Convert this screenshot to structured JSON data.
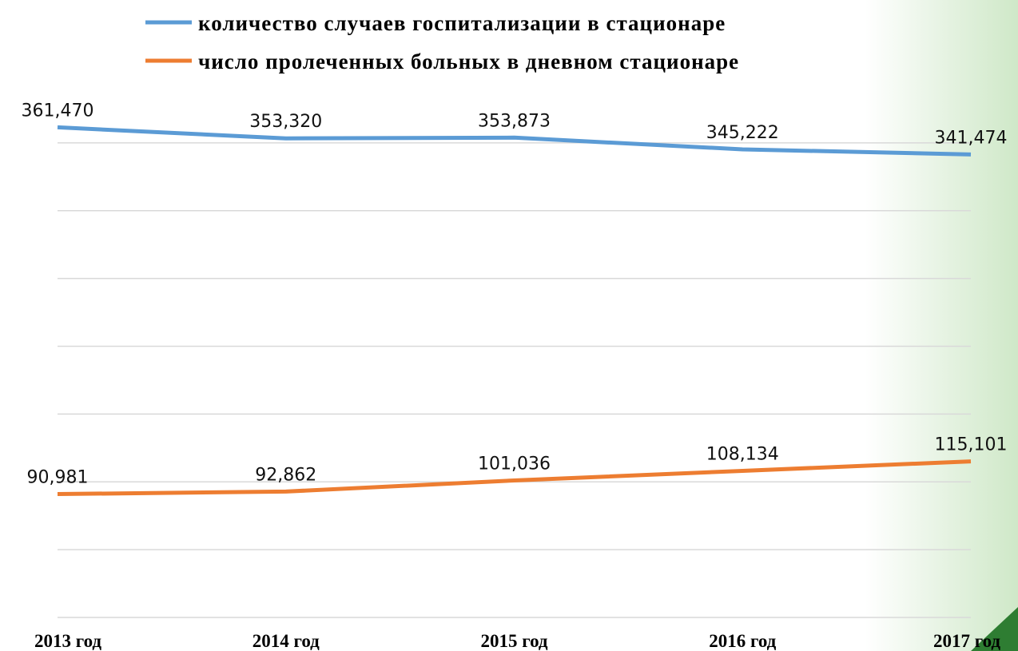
{
  "chart_data": {
    "type": "line",
    "categories": [
      "2013 год",
      "2014 год",
      "2015 год",
      "2016 год",
      "2017 год"
    ],
    "series": [
      {
        "name": "количество случаев госпитализации в стационаре",
        "color": "#5b9bd5",
        "values": [
          361470,
          353320,
          353873,
          345222,
          341474
        ],
        "value_labels": [
          "361,470",
          "353,320",
          "353,873",
          "345,222",
          "341,474"
        ]
      },
      {
        "name": "число пролеченных больных в дневном стационаре",
        "color": "#ed7d31",
        "values": [
          90981,
          92862,
          101036,
          108134,
          115101
        ],
        "value_labels": [
          "90,981",
          "92,862",
          "101,036",
          "108,134",
          "115,101"
        ]
      }
    ],
    "ylim": [
      0,
      400000
    ],
    "yticks": [
      0,
      50000,
      100000,
      150000,
      200000,
      250000,
      300000,
      350000
    ],
    "grid": true
  }
}
